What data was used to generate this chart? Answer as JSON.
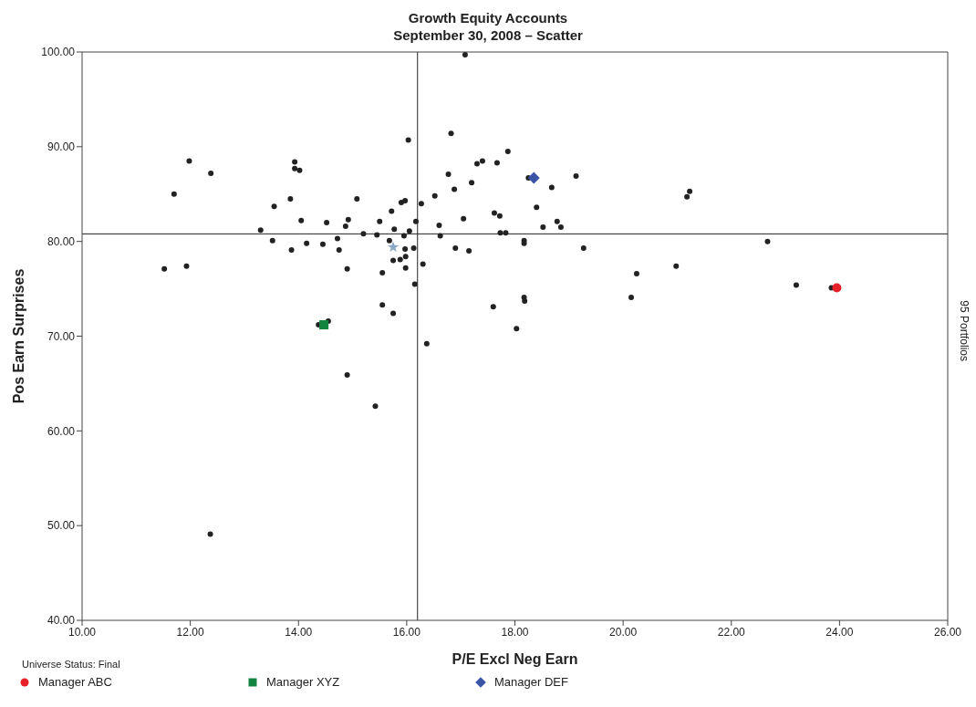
{
  "chart_data": {
    "type": "scatter",
    "title": "Growth Equity Accounts",
    "subtitle": "September 30, 2008 – Scatter",
    "xlabel": "P/E Excl Neg Earn",
    "ylabel": "Pos Earn Surprises",
    "xlim": [
      10,
      26
    ],
    "xticks": [
      {
        "value": 10,
        "label": "10.00"
      },
      {
        "value": 12,
        "label": "12.00"
      },
      {
        "value": 14,
        "label": "14.00"
      },
      {
        "value": 16,
        "label": "16.00"
      },
      {
        "value": 18,
        "label": "18.00"
      },
      {
        "value": 20,
        "label": "20.00"
      },
      {
        "value": 22,
        "label": "22.00"
      },
      {
        "value": 24,
        "label": "24.00"
      },
      {
        "value": 26,
        "label": "26.00"
      }
    ],
    "ylim": [
      40,
      100
    ],
    "yticks": [
      {
        "value": 40,
        "label": "40.00"
      },
      {
        "value": 50,
        "label": "50.00"
      },
      {
        "value": 60,
        "label": "60.00"
      },
      {
        "value": 70,
        "label": "70.00"
      },
      {
        "value": 80,
        "label": "80.00"
      },
      {
        "value": 90,
        "label": "90.00"
      },
      {
        "value": 100,
        "label": "100.00"
      }
    ],
    "grid": false,
    "legend": "bottom",
    "ref_lines": [
      {
        "axis": "x",
        "value": 16.2,
        "color": "#222222"
      },
      {
        "axis": "y",
        "value": 80.8,
        "color": "#222222"
      }
    ],
    "annotations": [
      "Universe Status: Final",
      "95 Portfolios"
    ],
    "series": [
      {
        "color": "#222222",
        "marker": "circle",
        "x": [
          11.52,
          11.98,
          12.38,
          11.7,
          11.93,
          12.37,
          13.3,
          13.52,
          13.55,
          13.85,
          13.93,
          13.93,
          14.02,
          13.87,
          14.05,
          14.15,
          14.45,
          14.52,
          14.72,
          14.75,
          14.9,
          14.87,
          14.92,
          15.08,
          15.2,
          15.45,
          15.5,
          15.55,
          15.55,
          15.75,
          15.42,
          14.9,
          14.37,
          14.55,
          15.68,
          15.72,
          15.77,
          15.75,
          15.88,
          15.9,
          15.97,
          15.95,
          15.97,
          15.98,
          15.98,
          16.03,
          16.05,
          16.13,
          16.17,
          16.15,
          16.27,
          16.3,
          16.37,
          16.52,
          16.6,
          16.62,
          16.77,
          16.82,
          16.88,
          16.9,
          17.05,
          17.08,
          17.15,
          17.2,
          17.3,
          17.4,
          17.6,
          17.62,
          17.67,
          17.72,
          17.73,
          17.83,
          17.87,
          18.03,
          18.17,
          18.17,
          18.17,
          18.18,
          18.25,
          18.4,
          18.52,
          18.68,
          18.78,
          18.85,
          19.13,
          19.27,
          20.15,
          20.25,
          20.98,
          21.18,
          21.23,
          22.67,
          23.2,
          23.85
        ],
        "values": [
          77.1,
          88.5,
          87.2,
          85.0,
          77.4,
          49.1,
          81.2,
          80.1,
          83.7,
          84.5,
          88.4,
          87.7,
          87.5,
          79.1,
          82.2,
          79.8,
          79.7,
          82.0,
          80.3,
          79.1,
          77.1,
          81.6,
          82.3,
          84.5,
          80.8,
          80.7,
          82.1,
          76.7,
          73.3,
          72.4,
          62.6,
          65.9,
          71.2,
          71.6,
          80.1,
          83.2,
          81.3,
          78.0,
          78.1,
          84.1,
          84.3,
          80.6,
          79.2,
          78.4,
          77.2,
          90.7,
          81.1,
          79.3,
          82.1,
          75.5,
          84.0,
          77.6,
          69.2,
          84.8,
          81.7,
          80.6,
          87.1,
          91.4,
          85.5,
          79.3,
          82.4,
          99.7,
          79.0,
          86.2,
          88.2,
          88.5,
          73.1,
          83.0,
          88.3,
          82.7,
          80.9,
          80.9,
          89.5,
          70.8,
          80.1,
          79.8,
          74.1,
          73.7,
          86.7,
          83.6,
          81.5,
          85.7,
          82.1,
          81.5,
          86.9,
          79.3,
          74.1,
          76.6,
          77.4,
          84.7,
          85.3,
          80.0,
          75.4,
          75.1
        ]
      },
      {
        "name": "Manager ABC",
        "color": "#e8202a",
        "marker": "circle",
        "x": [
          23.95
        ],
        "values": [
          75.1
        ]
      },
      {
        "name": "Manager XYZ",
        "color": "#13843f",
        "marker": "square",
        "x": [
          14.47
        ],
        "values": [
          71.2
        ]
      },
      {
        "name": "Manager DEF",
        "color": "#3a54a6",
        "marker": "diamond",
        "x": [
          18.35
        ],
        "values": [
          86.7
        ]
      },
      {
        "color": "#8ba7c3",
        "marker": "star",
        "x": [
          15.75
        ],
        "values": [
          79.4
        ]
      }
    ]
  }
}
